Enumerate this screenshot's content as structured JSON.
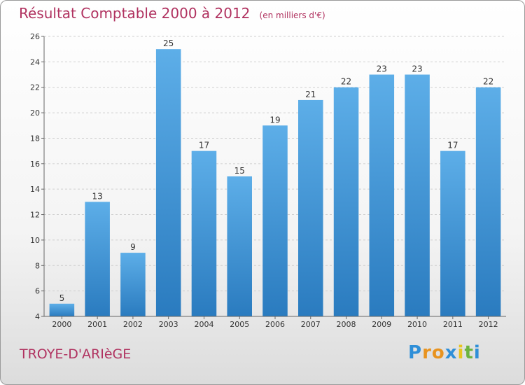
{
  "header": {
    "title": "Résultat Comptable 2000 à 2012",
    "subtitle": "(en milliers d'€)"
  },
  "footer": {
    "place": "TROYE-D'ARIèGE",
    "logo_letters": [
      {
        "ch": "P",
        "color": "#2f8fd8"
      },
      {
        "ch": "r",
        "color": "#e8931f"
      },
      {
        "ch": "o",
        "color": "#e8931f"
      },
      {
        "ch": "x",
        "color": "#2f8fd8"
      },
      {
        "ch": "i",
        "color": "#e8c51f"
      },
      {
        "ch": "t",
        "color": "#6db33f"
      },
      {
        "ch": "i",
        "color": "#2f8fd8"
      }
    ]
  },
  "colors": {
    "bar_top": "#5daee8",
    "bar_bottom": "#2a7bbf",
    "grid": "#cfcfcf",
    "axis": "#666666",
    "title": "#b0315f"
  },
  "chart_data": {
    "type": "bar",
    "title": "Résultat Comptable 2000 à 2012",
    "subtitle": "(en milliers d'€)",
    "xlabel": "",
    "ylabel": "",
    "categories": [
      "2000",
      "2001",
      "2002",
      "2003",
      "2004",
      "2005",
      "2006",
      "2007",
      "2008",
      "2009",
      "2010",
      "2011",
      "2012"
    ],
    "values": [
      5,
      13,
      9,
      25,
      17,
      15,
      19,
      21,
      22,
      23,
      23,
      17,
      22
    ],
    "ylim": [
      4,
      26
    ],
    "yticks": [
      4,
      6,
      8,
      10,
      12,
      14,
      16,
      18,
      20,
      22,
      24,
      26
    ],
    "grid": true,
    "legend": "none"
  }
}
